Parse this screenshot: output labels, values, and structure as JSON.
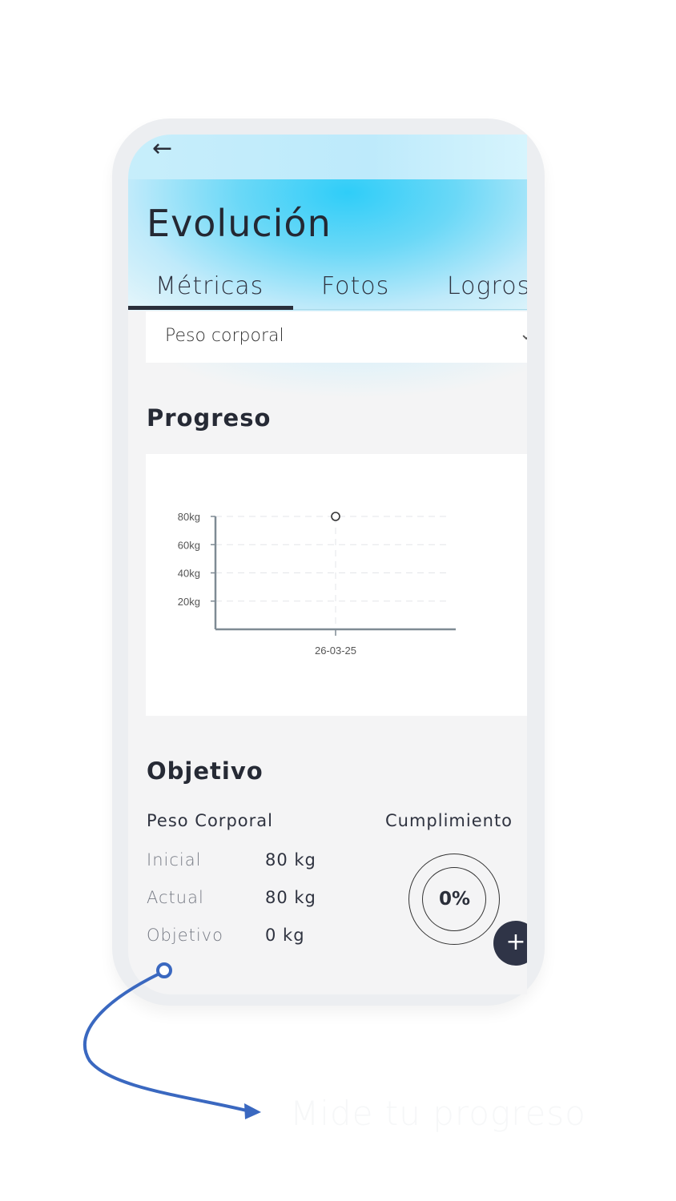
{
  "header": {
    "back_icon": "arrow-left-icon",
    "title": "Evolución"
  },
  "tabs": [
    {
      "label": "Métricas",
      "active": true
    },
    {
      "label": "Fotos",
      "active": false
    },
    {
      "label": "Logros",
      "active": false
    }
  ],
  "metric_select": {
    "value": "Peso corporal",
    "icon": "chevron-down-icon"
  },
  "progress": {
    "title": "Progreso",
    "chart_data": {
      "type": "scatter",
      "x": [
        "26-03-25"
      ],
      "y": [
        80
      ],
      "yticks": [
        "20kg",
        "40kg",
        "60kg",
        "80kg"
      ],
      "ylim": [
        0,
        80
      ],
      "grid": true
    }
  },
  "objective": {
    "title": "Objetivo",
    "metric_label": "Peso Corporal",
    "rows": [
      {
        "label": "Inicial",
        "value": "80 kg"
      },
      {
        "label": "Actual",
        "value": "80 kg"
      },
      {
        "label": "Objetivo",
        "value": "0 kg"
      }
    ],
    "compliance_label": "Cumplimiento",
    "compliance_value": "0%",
    "compliance_fraction": 0
  },
  "fab": {
    "icon": "plus-icon",
    "label": "+"
  },
  "caption": "Mide tu progreso",
  "colors": {
    "accent": "#2fcdf8",
    "dark": "#2f3447",
    "annotation": "#3a68c0"
  }
}
